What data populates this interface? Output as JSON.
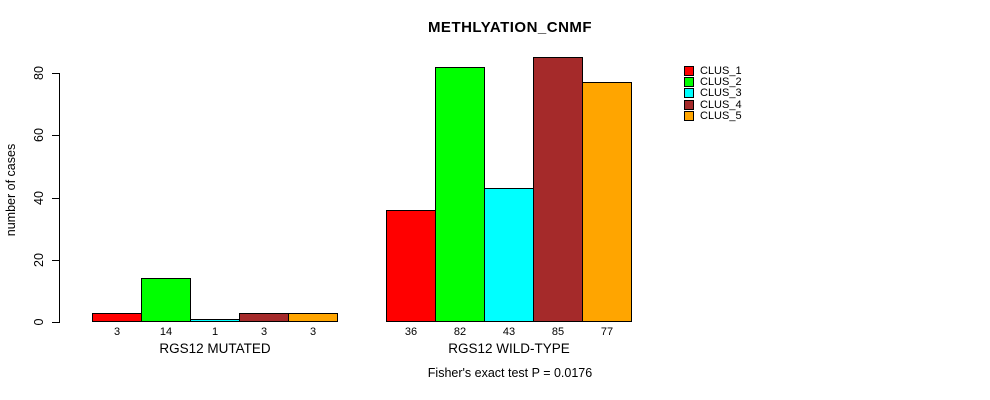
{
  "title": "METHLYATION_CNMF",
  "footer": "Fisher's exact test P = 0.0176",
  "chart_data": {
    "type": "bar",
    "title": "METHLYATION_CNMF",
    "subtitle": "",
    "xlabel": "",
    "ylabel": "number of cases",
    "yticks": [
      0,
      20,
      40,
      60,
      80
    ],
    "ylim": [
      0,
      85
    ],
    "grid": false,
    "legend_position": "right",
    "bar_value_labels": true,
    "categories": [
      "RGS12 MUTATED",
      "RGS12 WILD-TYPE"
    ],
    "series": [
      {
        "name": "CLUS_1",
        "color": "#FF0000",
        "values": [
          3,
          36
        ]
      },
      {
        "name": "CLUS_2",
        "color": "#00FF00",
        "values": [
          14,
          82
        ]
      },
      {
        "name": "CLUS_3",
        "color": "#00FFFF",
        "values": [
          1,
          43
        ]
      },
      {
        "name": "CLUS_4",
        "color": "#A52A2A",
        "values": [
          3,
          85
        ]
      },
      {
        "name": "CLUS_5",
        "color": "#FFA500",
        "values": [
          3,
          77
        ]
      }
    ],
    "annotation": "Fisher's exact test P = 0.0176"
  }
}
